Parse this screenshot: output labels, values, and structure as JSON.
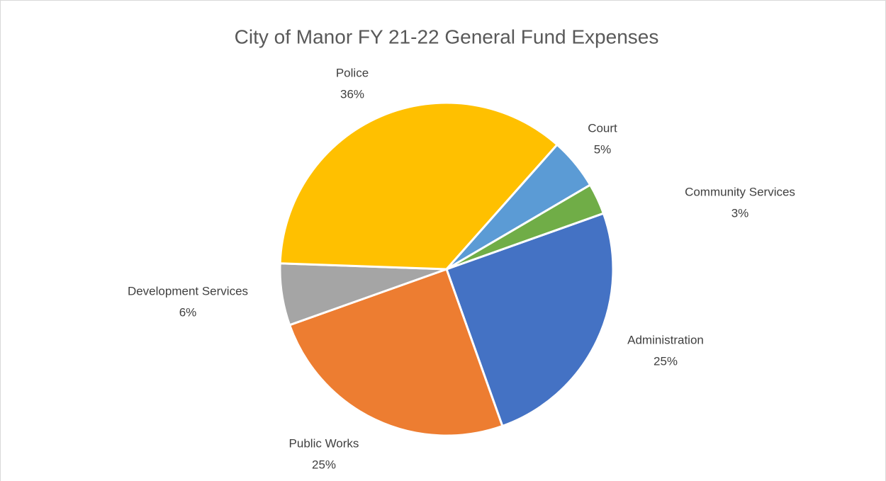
{
  "chart_data": {
    "type": "pie",
    "title": "City of Manor FY 21-22 General Fund Expenses",
    "categories": [
      "Administration",
      "Public Works",
      "Development Services",
      "Police",
      "Court",
      "Community Services"
    ],
    "values": [
      25,
      25,
      6,
      36,
      5,
      3
    ],
    "value_labels": [
      "25%",
      "25%",
      "6%",
      "36%",
      "5%",
      "3%"
    ],
    "colors": [
      "#4472c4",
      "#ed7d31",
      "#a5a5a5",
      "#ffc000",
      "#5b9bd5",
      "#70ad47"
    ]
  }
}
